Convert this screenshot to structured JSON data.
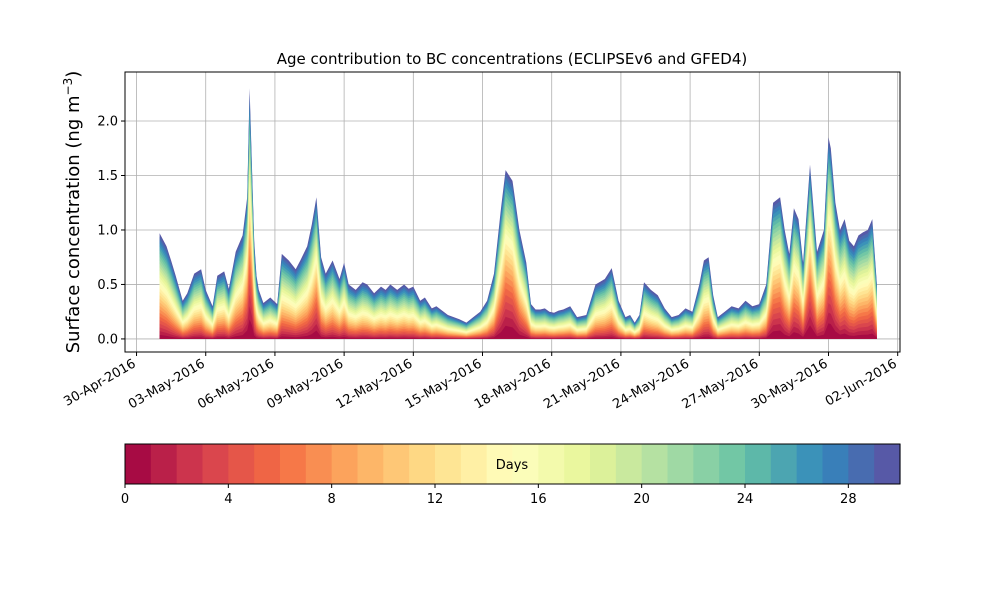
{
  "chart_data": {
    "type": "area",
    "stacked": true,
    "title": "Age contribution to BC concentrations (ECLIPSEv6 and GFED4)",
    "xlabel": "",
    "ylabel": "Surface concentration (ng m",
    "ylabel_exponent": "−3",
    "ylabel_close": ")",
    "x_axis_type": "date",
    "xlim_days": [
      -0.5,
      33.1
    ],
    "ylim": [
      -0.12,
      2.45
    ],
    "yticks": [
      0.0,
      0.5,
      1.0,
      1.5,
      2.0
    ],
    "ytick_labels": [
      "0.0",
      "0.5",
      "1.0",
      "1.5",
      "2.0"
    ],
    "xticks_days": [
      0,
      3,
      6,
      9,
      12,
      15,
      18,
      21,
      24,
      27,
      30,
      33
    ],
    "xtick_labels": [
      "30-Apr-2016",
      "03-May-2016",
      "06-May-2016",
      "09-May-2016",
      "12-May-2016",
      "15-May-2016",
      "18-May-2016",
      "21-May-2016",
      "24-May-2016",
      "27-May-2016",
      "30-May-2016",
      "02-Jun-2016"
    ],
    "grid": true,
    "series_description": "30 stacked layers by aerosol age (0–30 days); day offsets measured from 30-Apr-2016",
    "total_x_days": [
      1.0,
      1.3,
      1.5,
      1.7,
      2.0,
      2.2,
      2.5,
      2.8,
      3.0,
      3.3,
      3.5,
      3.8,
      4.0,
      4.3,
      4.6,
      4.8,
      4.9,
      5.0,
      5.1,
      5.2,
      5.3,
      5.5,
      5.8,
      6.1,
      6.3,
      6.6,
      6.9,
      7.1,
      7.4,
      7.6,
      7.8,
      8.0,
      8.2,
      8.5,
      8.8,
      9.0,
      9.2,
      9.5,
      9.8,
      10.0,
      10.3,
      10.6,
      10.8,
      11.0,
      11.3,
      11.6,
      11.8,
      12.0,
      12.3,
      12.5,
      12.8,
      13.0,
      13.5,
      14.0,
      14.3,
      14.6,
      14.9,
      15.2,
      15.5,
      15.8,
      16.0,
      16.3,
      16.6,
      16.9,
      17.1,
      17.3,
      17.5,
      17.7,
      17.9,
      18.1,
      18.3,
      18.5,
      18.8,
      19.1,
      19.5,
      19.9,
      20.3,
      20.6,
      20.9,
      21.2,
      21.4,
      21.6,
      21.8,
      22.0,
      22.3,
      22.6,
      22.9,
      23.2,
      23.5,
      23.8,
      24.1,
      24.4,
      24.6,
      24.8,
      25.0,
      25.2,
      25.5,
      25.8,
      26.1,
      26.4,
      26.7,
      27.0,
      27.3,
      27.6,
      27.9,
      28.1,
      28.3,
      28.5,
      28.7,
      28.9,
      29.2,
      29.5,
      29.8,
      30.0,
      30.1,
      30.3,
      30.5,
      30.7,
      30.9,
      31.1,
      31.3,
      31.5,
      31.7,
      31.9,
      32.1
    ],
    "total_y": [
      0.97,
      0.85,
      0.72,
      0.58,
      0.35,
      0.42,
      0.6,
      0.64,
      0.45,
      0.3,
      0.58,
      0.62,
      0.46,
      0.8,
      0.95,
      1.3,
      2.3,
      1.6,
      0.9,
      0.58,
      0.45,
      0.33,
      0.38,
      0.32,
      0.78,
      0.72,
      0.64,
      0.72,
      0.85,
      1.05,
      1.3,
      0.75,
      0.6,
      0.72,
      0.55,
      0.7,
      0.5,
      0.45,
      0.52,
      0.5,
      0.42,
      0.48,
      0.45,
      0.5,
      0.45,
      0.5,
      0.46,
      0.48,
      0.35,
      0.38,
      0.28,
      0.3,
      0.22,
      0.18,
      0.15,
      0.2,
      0.25,
      0.35,
      0.6,
      1.2,
      1.55,
      1.45,
      1.0,
      0.7,
      0.32,
      0.27,
      0.27,
      0.28,
      0.25,
      0.24,
      0.26,
      0.27,
      0.3,
      0.2,
      0.22,
      0.5,
      0.55,
      0.65,
      0.35,
      0.2,
      0.22,
      0.15,
      0.22,
      0.52,
      0.45,
      0.4,
      0.28,
      0.2,
      0.22,
      0.28,
      0.25,
      0.5,
      0.72,
      0.75,
      0.4,
      0.2,
      0.25,
      0.3,
      0.28,
      0.35,
      0.3,
      0.32,
      0.5,
      1.25,
      1.3,
      1.0,
      0.78,
      1.2,
      1.1,
      0.7,
      1.6,
      0.8,
      1.0,
      1.85,
      1.75,
      1.25,
      1.0,
      1.1,
      0.9,
      0.85,
      0.95,
      0.98,
      1.0,
      1.1,
      0.5
    ]
  },
  "colorbar": {
    "label": "Days",
    "min": 0,
    "max": 30,
    "n_levels": 30,
    "tick_values": [
      0,
      4,
      8,
      12,
      16,
      20,
      24,
      28
    ],
    "tick_labels": [
      "0",
      "4",
      "8",
      "12",
      "16",
      "20",
      "24",
      "28"
    ],
    "colormap": "Spectral",
    "colors": [
      "#9e0142",
      "#d53e4f",
      "#f46d43",
      "#fdae61",
      "#fee08b",
      "#ffffbf",
      "#e6f598",
      "#abdda4",
      "#66c2a5",
      "#3288bd",
      "#5e4fa2"
    ]
  }
}
